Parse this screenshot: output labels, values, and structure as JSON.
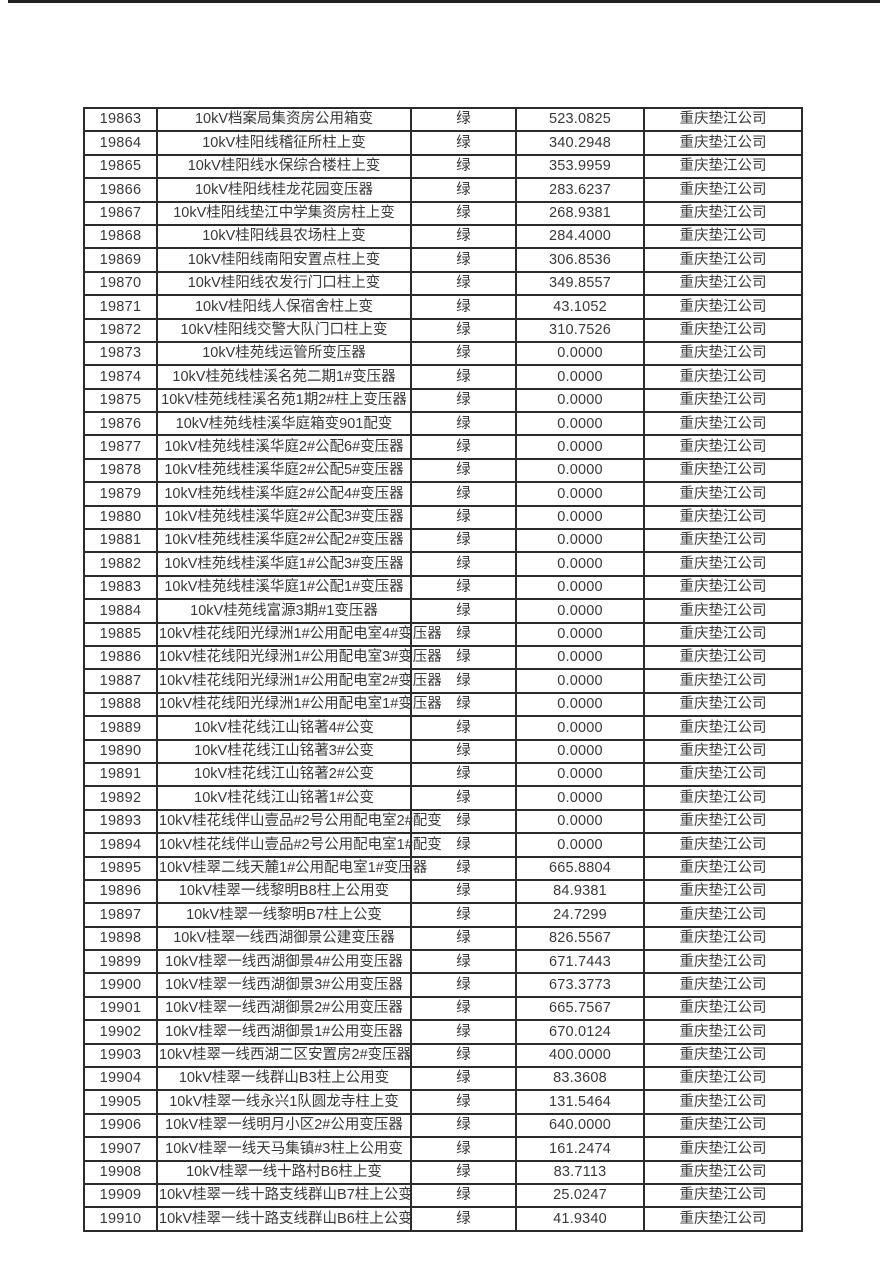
{
  "page": {
    "top_rule_color": "#212121",
    "background_color": "#ffffff",
    "text_color": "#383838",
    "border_color": "#2b2b2b"
  },
  "table": {
    "has_header": false,
    "columns": [
      "serial",
      "device-name",
      "status",
      "value",
      "company"
    ],
    "status_label_common": "绿",
    "company_common": "重庆垫江公司",
    "rows": [
      {
        "id": "19863",
        "name": "10kV档案局集资房公用箱变",
        "status": "绿",
        "value": "523.0825",
        "company": "重庆垫江公司"
      },
      {
        "id": "19864",
        "name": "10kV桂阳线稽征所柱上变",
        "status": "绿",
        "value": "340.2948",
        "company": "重庆垫江公司"
      },
      {
        "id": "19865",
        "name": "10kV桂阳线水保综合楼柱上变",
        "status": "绿",
        "value": "353.9959",
        "company": "重庆垫江公司"
      },
      {
        "id": "19866",
        "name": "10kV桂阳线桂龙花园变压器",
        "status": "绿",
        "value": "283.6237",
        "company": "重庆垫江公司"
      },
      {
        "id": "19867",
        "name": "10kV桂阳线垫江中学集资房柱上变",
        "status": "绿",
        "value": "268.9381",
        "company": "重庆垫江公司"
      },
      {
        "id": "19868",
        "name": "10kV桂阳线县农场柱上变",
        "status": "绿",
        "value": "284.4000",
        "company": "重庆垫江公司"
      },
      {
        "id": "19869",
        "name": "10kV桂阳线南阳安置点柱上变",
        "status": "绿",
        "value": "306.8536",
        "company": "重庆垫江公司"
      },
      {
        "id": "19870",
        "name": "10kV桂阳线农发行门口柱上变",
        "status": "绿",
        "value": "349.8557",
        "company": "重庆垫江公司"
      },
      {
        "id": "19871",
        "name": "10kV桂阳线人保宿舍柱上变",
        "status": "绿",
        "value": "43.1052",
        "company": "重庆垫江公司"
      },
      {
        "id": "19872",
        "name": "10kV桂阳线交警大队门口柱上变",
        "status": "绿",
        "value": "310.7526",
        "company": "重庆垫江公司"
      },
      {
        "id": "19873",
        "name": "10kV桂苑线运管所变压器",
        "status": "绿",
        "value": "0.0000",
        "company": "重庆垫江公司"
      },
      {
        "id": "19874",
        "name": "10kV桂苑线桂溪名苑二期1#变压器",
        "status": "绿",
        "value": "0.0000",
        "company": "重庆垫江公司"
      },
      {
        "id": "19875",
        "name": "10kV桂苑线桂溪名苑1期2#柱上变压器",
        "status": "绿",
        "value": "0.0000",
        "company": "重庆垫江公司"
      },
      {
        "id": "19876",
        "name": "10kV桂苑线桂溪华庭箱变901配变",
        "status": "绿",
        "value": "0.0000",
        "company": "重庆垫江公司"
      },
      {
        "id": "19877",
        "name": "10kV桂苑线桂溪华庭2#公配6#变压器",
        "status": "绿",
        "value": "0.0000",
        "company": "重庆垫江公司"
      },
      {
        "id": "19878",
        "name": "10kV桂苑线桂溪华庭2#公配5#变压器",
        "status": "绿",
        "value": "0.0000",
        "company": "重庆垫江公司"
      },
      {
        "id": "19879",
        "name": "10kV桂苑线桂溪华庭2#公配4#变压器",
        "status": "绿",
        "value": "0.0000",
        "company": "重庆垫江公司"
      },
      {
        "id": "19880",
        "name": "10kV桂苑线桂溪华庭2#公配3#变压器",
        "status": "绿",
        "value": "0.0000",
        "company": "重庆垫江公司"
      },
      {
        "id": "19881",
        "name": "10kV桂苑线桂溪华庭2#公配2#变压器",
        "status": "绿",
        "value": "0.0000",
        "company": "重庆垫江公司"
      },
      {
        "id": "19882",
        "name": "10kV桂苑线桂溪华庭1#公配3#变压器",
        "status": "绿",
        "value": "0.0000",
        "company": "重庆垫江公司"
      },
      {
        "id": "19883",
        "name": "10kV桂苑线桂溪华庭1#公配1#变压器",
        "status": "绿",
        "value": "0.0000",
        "company": "重庆垫江公司"
      },
      {
        "id": "19884",
        "name": "10kV桂苑线富源3期#1变压器",
        "status": "绿",
        "value": "0.0000",
        "company": "重庆垫江公司"
      },
      {
        "id": "19885",
        "name": "10kV桂花线阳光绿洲1#公用配电室4#变压器",
        "status": "绿",
        "value": "0.0000",
        "company": "重庆垫江公司"
      },
      {
        "id": "19886",
        "name": "10kV桂花线阳光绿洲1#公用配电室3#变压器",
        "status": "绿",
        "value": "0.0000",
        "company": "重庆垫江公司"
      },
      {
        "id": "19887",
        "name": "10kV桂花线阳光绿洲1#公用配电室2#变压器",
        "status": "绿",
        "value": "0.0000",
        "company": "重庆垫江公司"
      },
      {
        "id": "19888",
        "name": "10kV桂花线阳光绿洲1#公用配电室1#变压器",
        "status": "绿",
        "value": "0.0000",
        "company": "重庆垫江公司"
      },
      {
        "id": "19889",
        "name": "10kV桂花线江山铭著4#公变",
        "status": "绿",
        "value": "0.0000",
        "company": "重庆垫江公司"
      },
      {
        "id": "19890",
        "name": "10kV桂花线江山铭著3#公变",
        "status": "绿",
        "value": "0.0000",
        "company": "重庆垫江公司"
      },
      {
        "id": "19891",
        "name": "10kV桂花线江山铭著2#公变",
        "status": "绿",
        "value": "0.0000",
        "company": "重庆垫江公司"
      },
      {
        "id": "19892",
        "name": "10kV桂花线江山铭著1#公变",
        "status": "绿",
        "value": "0.0000",
        "company": "重庆垫江公司"
      },
      {
        "id": "19893",
        "name": "10kV桂花线伴山壹品#2号公用配电室2#配变",
        "status": "绿",
        "value": "0.0000",
        "company": "重庆垫江公司"
      },
      {
        "id": "19894",
        "name": "10kV桂花线伴山壹品#2号公用配电室1#配变",
        "status": "绿",
        "value": "0.0000",
        "company": "重庆垫江公司"
      },
      {
        "id": "19895",
        "name": "10kV桂翠二线天麓1#公用配电室1#变压器",
        "status": "绿",
        "value": "665.8804",
        "company": "重庆垫江公司"
      },
      {
        "id": "19896",
        "name": "10kV桂翠一线黎明B8柱上公用变",
        "status": "绿",
        "value": "84.9381",
        "company": "重庆垫江公司"
      },
      {
        "id": "19897",
        "name": "10kV桂翠一线黎明B7柱上公变",
        "status": "绿",
        "value": "24.7299",
        "company": "重庆垫江公司"
      },
      {
        "id": "19898",
        "name": "10kV桂翠一线西湖御景公建变压器",
        "status": "绿",
        "value": "826.5567",
        "company": "重庆垫江公司"
      },
      {
        "id": "19899",
        "name": "10kV桂翠一线西湖御景4#公用变压器",
        "status": "绿",
        "value": "671.7443",
        "company": "重庆垫江公司"
      },
      {
        "id": "19900",
        "name": "10kV桂翠一线西湖御景3#公用变压器",
        "status": "绿",
        "value": "673.3773",
        "company": "重庆垫江公司"
      },
      {
        "id": "19901",
        "name": "10kV桂翠一线西湖御景2#公用变压器",
        "status": "绿",
        "value": "665.7567",
        "company": "重庆垫江公司"
      },
      {
        "id": "19902",
        "name": "10kV桂翠一线西湖御景1#公用变压器",
        "status": "绿",
        "value": "670.0124",
        "company": "重庆垫江公司"
      },
      {
        "id": "19903",
        "name": "10kV桂翠一线西湖二区安置房2#变压器",
        "status": "绿",
        "value": "400.0000",
        "company": "重庆垫江公司"
      },
      {
        "id": "19904",
        "name": "10kV桂翠一线群山B3柱上公用变",
        "status": "绿",
        "value": "83.3608",
        "company": "重庆垫江公司"
      },
      {
        "id": "19905",
        "name": "10kV桂翠一线永兴1队圆龙寺柱上变",
        "status": "绿",
        "value": "131.5464",
        "company": "重庆垫江公司"
      },
      {
        "id": "19906",
        "name": "10kV桂翠一线明月小区2#公用变压器",
        "status": "绿",
        "value": "640.0000",
        "company": "重庆垫江公司"
      },
      {
        "id": "19907",
        "name": "10kV桂翠一线天马集镇#3柱上公用变",
        "status": "绿",
        "value": "161.2474",
        "company": "重庆垫江公司"
      },
      {
        "id": "19908",
        "name": "10kV桂翠一线十路村B6柱上变",
        "status": "绿",
        "value": "83.7113",
        "company": "重庆垫江公司"
      },
      {
        "id": "19909",
        "name": "10kV桂翠一线十路支线群山B7柱上公变",
        "status": "绿",
        "value": "25.0247",
        "company": "重庆垫江公司"
      },
      {
        "id": "19910",
        "name": "10kV桂翠一线十路支线群山B6柱上公变",
        "status": "绿",
        "value": "41.9340",
        "company": "重庆垫江公司"
      }
    ]
  }
}
